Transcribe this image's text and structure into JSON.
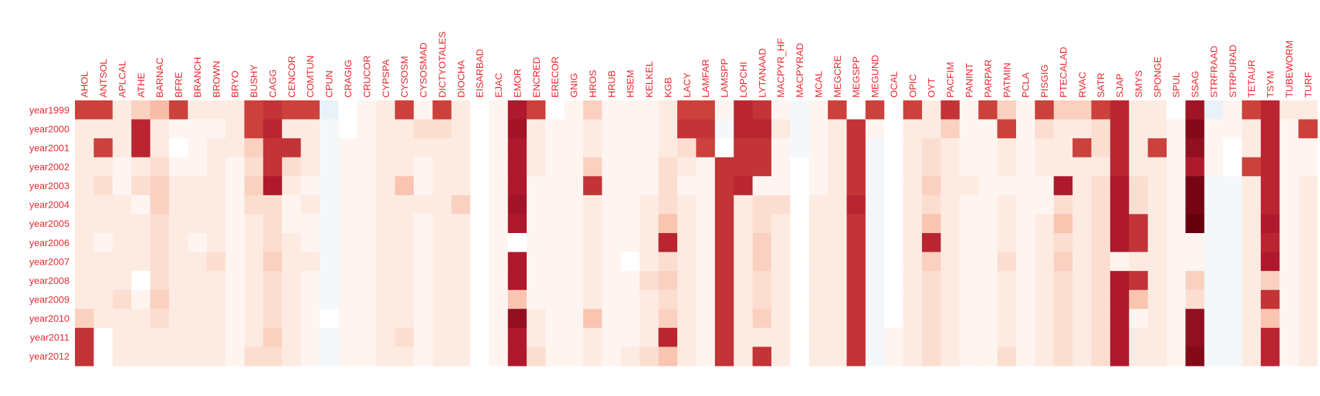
{
  "chart_data": {
    "type": "heatmap",
    "title": "",
    "xlabel": "",
    "ylabel": "",
    "legend": "none",
    "grid": false,
    "colormap": "diverging red (high) / white (0) / blue (low)",
    "columns": [
      "AHOL",
      "ANTSOL",
      "APLCAL",
      "ATHE",
      "BARNAC",
      "BFRE",
      "BRANCH",
      "BROWN",
      "BRYO",
      "BUSHY",
      "CAGG",
      "CENCOR",
      "COMTUN",
      "CPUN",
      "CRAGIG",
      "CRUCOR",
      "CYPSPA",
      "CYSOSM",
      "CYSOSMAD",
      "DICTYOTALES",
      "DIOCHA",
      "EISARBAD",
      "EJAC",
      "EMOR",
      "ENCRED",
      "ERECOR",
      "GNIG",
      "HROS",
      "HRUB",
      "HSEM",
      "KELKEL",
      "KGB",
      "LACY",
      "LAMFAR",
      "LAMSPP",
      "LOPCHI",
      "LYTANAAD",
      "MACPYR_HF",
      "MACPYRAD",
      "MCAL",
      "MEGCRE",
      "MEGSPP",
      "MEGUND",
      "OCAL",
      "OPIC",
      "OYT",
      "PACFIM",
      "PANINT",
      "PARPAR",
      "PATMIN",
      "PCLA",
      "PISGIG",
      "PTECALAD",
      "RVAC",
      "SATR",
      "SJAP",
      "SMYS",
      "SPONGE",
      "SPUL",
      "SSAG",
      "STRFRAAD",
      "STRPURAD",
      "TETAUR",
      "TSYM",
      "TUBEWORM",
      "TURF"
    ],
    "rows": [
      "year1999",
      "year2000",
      "year2001",
      "year2002",
      "year2003",
      "year2004",
      "year2005",
      "year2006",
      "year2007",
      "year2008",
      "year2009",
      "year2010",
      "year2011",
      "year2012"
    ],
    "values": [
      [
        0.8,
        0.8,
        0.1,
        0.2,
        0.3,
        0.8,
        0.1,
        0.1,
        0.1,
        0.8,
        0.85,
        0.8,
        0.8,
        -0.1,
        0.0,
        0.05,
        0.1,
        0.8,
        0.05,
        0.8,
        0.1,
        0.0,
        0.05,
        0.95,
        0.8,
        0.0,
        0.05,
        0.2,
        0.05,
        0.05,
        0.05,
        0.1,
        0.8,
        0.8,
        0.05,
        0.9,
        0.85,
        0.05,
        -0.05,
        0.05,
        0.8,
        0.0,
        0.8,
        0.0,
        0.8,
        0.1,
        0.85,
        0.05,
        0.8,
        0.2,
        0.05,
        0.8,
        0.2,
        0.2,
        0.8,
        0.9,
        0.1,
        0.1,
        0.0,
        1.0,
        -0.1,
        0.05,
        0.8,
        0.9,
        0.1,
        0.1
      ],
      [
        0.1,
        0.1,
        0.1,
        0.9,
        0.1,
        0.05,
        0.05,
        0.05,
        0.1,
        0.8,
        0.9,
        0.1,
        0.1,
        -0.05,
        0.0,
        0.05,
        0.1,
        0.1,
        0.15,
        0.15,
        0.1,
        0.0,
        0.05,
        1.0,
        0.1,
        0.05,
        0.05,
        0.1,
        0.05,
        0.05,
        0.05,
        0.1,
        0.85,
        0.85,
        -0.05,
        0.9,
        0.9,
        0.1,
        -0.05,
        0.05,
        0.1,
        0.85,
        0.05,
        0.0,
        0.1,
        0.1,
        0.2,
        0.05,
        0.05,
        0.8,
        0.05,
        0.15,
        0.1,
        0.1,
        0.15,
        0.9,
        0.1,
        0.1,
        0.05,
        1.1,
        0.05,
        0.05,
        0.1,
        0.9,
        0.05,
        0.8
      ],
      [
        0.1,
        0.8,
        0.1,
        0.9,
        0.1,
        0.0,
        0.05,
        0.1,
        0.1,
        0.2,
        0.85,
        0.85,
        0.1,
        -0.05,
        0.05,
        0.05,
        0.1,
        0.1,
        0.1,
        0.1,
        0.1,
        0.0,
        0.05,
        0.95,
        0.1,
        0.05,
        0.05,
        0.1,
        0.05,
        0.05,
        0.05,
        0.1,
        0.15,
        0.8,
        0.0,
        0.85,
        0.85,
        0.05,
        -0.05,
        0.05,
        0.1,
        0.85,
        -0.05,
        0.0,
        0.1,
        0.15,
        0.1,
        0.05,
        0.05,
        0.1,
        0.05,
        0.1,
        0.1,
        0.8,
        0.15,
        0.9,
        0.1,
        0.8,
        0.05,
        1.05,
        0.05,
        0.0,
        0.1,
        0.9,
        0.05,
        0.05
      ],
      [
        0.1,
        0.1,
        0.05,
        0.1,
        0.15,
        0.05,
        0.05,
        0.1,
        0.05,
        0.15,
        0.85,
        0.15,
        0.1,
        -0.05,
        0.05,
        0.05,
        0.1,
        0.1,
        0.05,
        0.1,
        0.1,
        0.0,
        0.05,
        0.95,
        0.1,
        0.05,
        0.05,
        0.2,
        0.05,
        0.05,
        0.05,
        0.15,
        0.1,
        0.05,
        0.85,
        0.85,
        0.85,
        0.05,
        0.0,
        0.05,
        0.1,
        0.85,
        -0.05,
        0.0,
        0.1,
        0.15,
        0.1,
        0.05,
        0.05,
        0.1,
        0.05,
        0.1,
        0.1,
        0.1,
        0.1,
        0.9,
        0.1,
        0.1,
        0.05,
        0.95,
        0.05,
        0.0,
        0.8,
        0.9,
        0.05,
        0.05
      ],
      [
        0.1,
        0.15,
        0.05,
        0.15,
        0.2,
        0.1,
        0.1,
        0.1,
        0.05,
        0.2,
        0.95,
        0.1,
        0.05,
        -0.05,
        0.05,
        0.05,
        0.1,
        0.25,
        0.05,
        0.1,
        0.1,
        0.0,
        0.05,
        0.95,
        0.05,
        0.05,
        0.05,
        0.85,
        0.05,
        0.05,
        0.05,
        0.15,
        0.05,
        0.05,
        0.85,
        0.9,
        0.05,
        0.05,
        0.0,
        0.05,
        0.1,
        0.85,
        -0.05,
        0.0,
        0.1,
        0.2,
        0.1,
        0.1,
        0.05,
        0.05,
        0.05,
        0.05,
        0.95,
        0.1,
        0.15,
        0.95,
        0.15,
        0.1,
        0.05,
        1.15,
        -0.05,
        -0.05,
        0.1,
        0.9,
        0.05,
        0.1
      ],
      [
        0.1,
        0.1,
        0.1,
        0.05,
        0.2,
        0.1,
        0.1,
        0.1,
        0.05,
        0.15,
        0.15,
        0.05,
        0.1,
        -0.05,
        0.05,
        0.05,
        0.1,
        0.1,
        0.1,
        0.1,
        0.2,
        0.0,
        0.05,
        1.0,
        0.05,
        0.05,
        0.05,
        0.1,
        0.05,
        0.05,
        0.1,
        0.15,
        0.1,
        0.05,
        0.85,
        0.1,
        0.15,
        0.15,
        0.0,
        0.1,
        0.1,
        0.9,
        -0.05,
        0.0,
        0.1,
        0.15,
        0.1,
        0.05,
        0.05,
        0.1,
        0.05,
        0.05,
        0.15,
        0.1,
        0.15,
        0.95,
        0.15,
        0.1,
        0.05,
        1.15,
        -0.05,
        -0.05,
        0.1,
        0.9,
        0.05,
        0.1
      ],
      [
        0.1,
        0.1,
        0.1,
        0.1,
        0.15,
        0.1,
        0.1,
        0.1,
        0.05,
        0.1,
        0.15,
        0.05,
        0.05,
        -0.05,
        0.05,
        0.05,
        0.1,
        0.1,
        0.05,
        0.1,
        0.1,
        0.0,
        0.05,
        0.95,
        0.05,
        0.05,
        0.05,
        0.1,
        0.05,
        0.05,
        0.1,
        0.25,
        0.1,
        0.05,
        0.85,
        0.1,
        0.15,
        0.1,
        0.0,
        0.1,
        0.1,
        0.85,
        -0.05,
        0.0,
        0.1,
        0.25,
        0.1,
        0.05,
        0.05,
        0.1,
        0.05,
        0.1,
        0.25,
        0.1,
        0.15,
        0.95,
        0.85,
        0.1,
        0.05,
        1.2,
        -0.05,
        -0.05,
        0.1,
        0.95,
        0.05,
        0.1
      ],
      [
        0.1,
        0.05,
        0.1,
        0.1,
        0.15,
        0.1,
        0.05,
        0.1,
        0.05,
        0.1,
        0.15,
        0.1,
        0.05,
        -0.05,
        0.05,
        0.05,
        0.1,
        0.1,
        0.05,
        0.1,
        0.1,
        0.0,
        0.05,
        0.0,
        0.05,
        0.05,
        0.05,
        0.1,
        0.05,
        0.05,
        0.1,
        0.9,
        0.1,
        0.05,
        0.85,
        0.1,
        0.2,
        0.1,
        0.0,
        0.1,
        0.1,
        0.85,
        -0.05,
        0.0,
        0.1,
        0.9,
        0.1,
        0.05,
        0.05,
        0.1,
        0.05,
        0.1,
        0.15,
        0.1,
        0.15,
        0.95,
        0.85,
        0.1,
        0.05,
        0.05,
        -0.05,
        -0.05,
        0.1,
        0.9,
        0.05,
        0.1
      ],
      [
        0.1,
        0.1,
        0.1,
        0.1,
        0.15,
        0.1,
        0.1,
        0.15,
        0.05,
        0.1,
        0.2,
        0.1,
        0.1,
        -0.05,
        0.05,
        0.05,
        0.1,
        0.1,
        0.05,
        0.1,
        0.1,
        0.0,
        0.05,
        0.95,
        0.05,
        0.05,
        0.05,
        0.1,
        0.05,
        0.0,
        0.1,
        0.15,
        0.1,
        0.05,
        0.85,
        0.1,
        0.2,
        0.1,
        0.0,
        0.1,
        0.1,
        0.85,
        -0.05,
        0.0,
        0.1,
        0.2,
        0.1,
        0.05,
        0.05,
        0.15,
        0.05,
        0.1,
        0.2,
        0.1,
        0.15,
        0.05,
        0.1,
        0.1,
        0.05,
        0.05,
        -0.05,
        -0.05,
        0.1,
        0.95,
        0.05,
        0.1
      ],
      [
        0.1,
        0.1,
        0.1,
        0.0,
        0.15,
        0.1,
        0.1,
        0.1,
        0.05,
        0.1,
        0.15,
        0.1,
        0.05,
        -0.05,
        0.05,
        0.05,
        0.1,
        0.1,
        0.05,
        0.1,
        0.1,
        0.0,
        0.05,
        0.95,
        0.05,
        0.05,
        0.05,
        0.1,
        0.05,
        0.05,
        0.15,
        0.2,
        0.1,
        0.05,
        0.85,
        0.1,
        0.15,
        0.1,
        0.0,
        0.1,
        0.1,
        0.85,
        -0.05,
        0.0,
        0.1,
        0.15,
        0.1,
        0.05,
        0.05,
        0.1,
        0.05,
        0.1,
        0.15,
        0.1,
        0.15,
        0.95,
        0.85,
        0.1,
        0.05,
        0.2,
        -0.05,
        -0.05,
        0.1,
        0.2,
        0.05,
        0.1
      ],
      [
        0.1,
        0.1,
        0.15,
        0.05,
        0.2,
        0.1,
        0.1,
        0.1,
        0.05,
        0.1,
        0.15,
        0.1,
        0.05,
        -0.05,
        0.05,
        0.05,
        0.1,
        0.1,
        0.05,
        0.1,
        0.1,
        0.0,
        0.05,
        0.25,
        0.05,
        0.05,
        0.05,
        0.1,
        0.05,
        0.05,
        0.1,
        0.15,
        0.1,
        0.05,
        0.85,
        0.1,
        0.15,
        0.1,
        0.0,
        0.1,
        0.1,
        0.85,
        -0.05,
        0.0,
        0.1,
        0.15,
        0.1,
        0.05,
        0.05,
        0.1,
        0.05,
        0.1,
        0.15,
        0.1,
        0.15,
        0.95,
        0.25,
        0.1,
        0.05,
        0.15,
        -0.05,
        -0.05,
        0.1,
        0.85,
        0.05,
        0.1
      ],
      [
        0.2,
        0.1,
        0.1,
        0.1,
        0.15,
        0.1,
        0.1,
        0.1,
        0.05,
        0.1,
        0.15,
        0.1,
        0.05,
        0.0,
        0.05,
        0.05,
        0.1,
        0.1,
        0.05,
        0.1,
        0.1,
        0.0,
        0.05,
        1.05,
        0.1,
        0.05,
        0.05,
        0.25,
        0.05,
        0.05,
        0.1,
        0.2,
        0.1,
        0.05,
        0.85,
        0.1,
        0.2,
        0.1,
        0.0,
        0.1,
        0.1,
        0.85,
        -0.05,
        0.0,
        0.1,
        0.15,
        0.1,
        0.05,
        0.05,
        0.1,
        0.05,
        0.1,
        0.15,
        0.1,
        0.15,
        0.95,
        0.05,
        0.1,
        0.05,
        1.05,
        -0.05,
        -0.05,
        0.1,
        0.25,
        0.05,
        0.1
      ],
      [
        0.85,
        0.0,
        0.1,
        0.1,
        0.1,
        0.1,
        0.1,
        0.1,
        0.05,
        0.1,
        0.2,
        0.1,
        0.05,
        -0.05,
        0.05,
        0.05,
        0.1,
        0.15,
        0.05,
        0.1,
        0.1,
        0.0,
        0.05,
        0.95,
        0.1,
        0.05,
        0.05,
        0.1,
        0.05,
        0.05,
        0.1,
        0.9,
        0.1,
        0.05,
        0.85,
        0.1,
        0.1,
        0.1,
        0.0,
        0.1,
        0.1,
        0.85,
        -0.05,
        0.05,
        0.1,
        0.15,
        0.1,
        0.05,
        0.05,
        0.1,
        0.05,
        0.1,
        0.15,
        0.1,
        0.15,
        0.95,
        0.1,
        0.1,
        0.05,
        1.05,
        -0.05,
        -0.05,
        0.1,
        0.9,
        0.05,
        0.1
      ],
      [
        0.85,
        0.0,
        0.1,
        0.1,
        0.1,
        0.1,
        0.1,
        0.1,
        0.05,
        0.15,
        0.15,
        0.1,
        0.05,
        -0.05,
        0.05,
        0.05,
        0.1,
        0.1,
        0.05,
        0.1,
        0.1,
        0.0,
        0.05,
        0.95,
        0.15,
        0.05,
        0.05,
        0.1,
        0.05,
        0.1,
        0.15,
        0.25,
        0.1,
        0.05,
        0.85,
        0.1,
        0.85,
        0.1,
        0.0,
        0.1,
        0.1,
        0.85,
        -0.05,
        0.05,
        0.1,
        0.15,
        0.1,
        0.05,
        0.05,
        0.15,
        0.05,
        0.1,
        0.15,
        0.1,
        0.15,
        0.95,
        0.1,
        0.1,
        0.05,
        1.1,
        -0.05,
        -0.05,
        0.1,
        0.9,
        0.05,
        0.1
      ]
    ]
  }
}
